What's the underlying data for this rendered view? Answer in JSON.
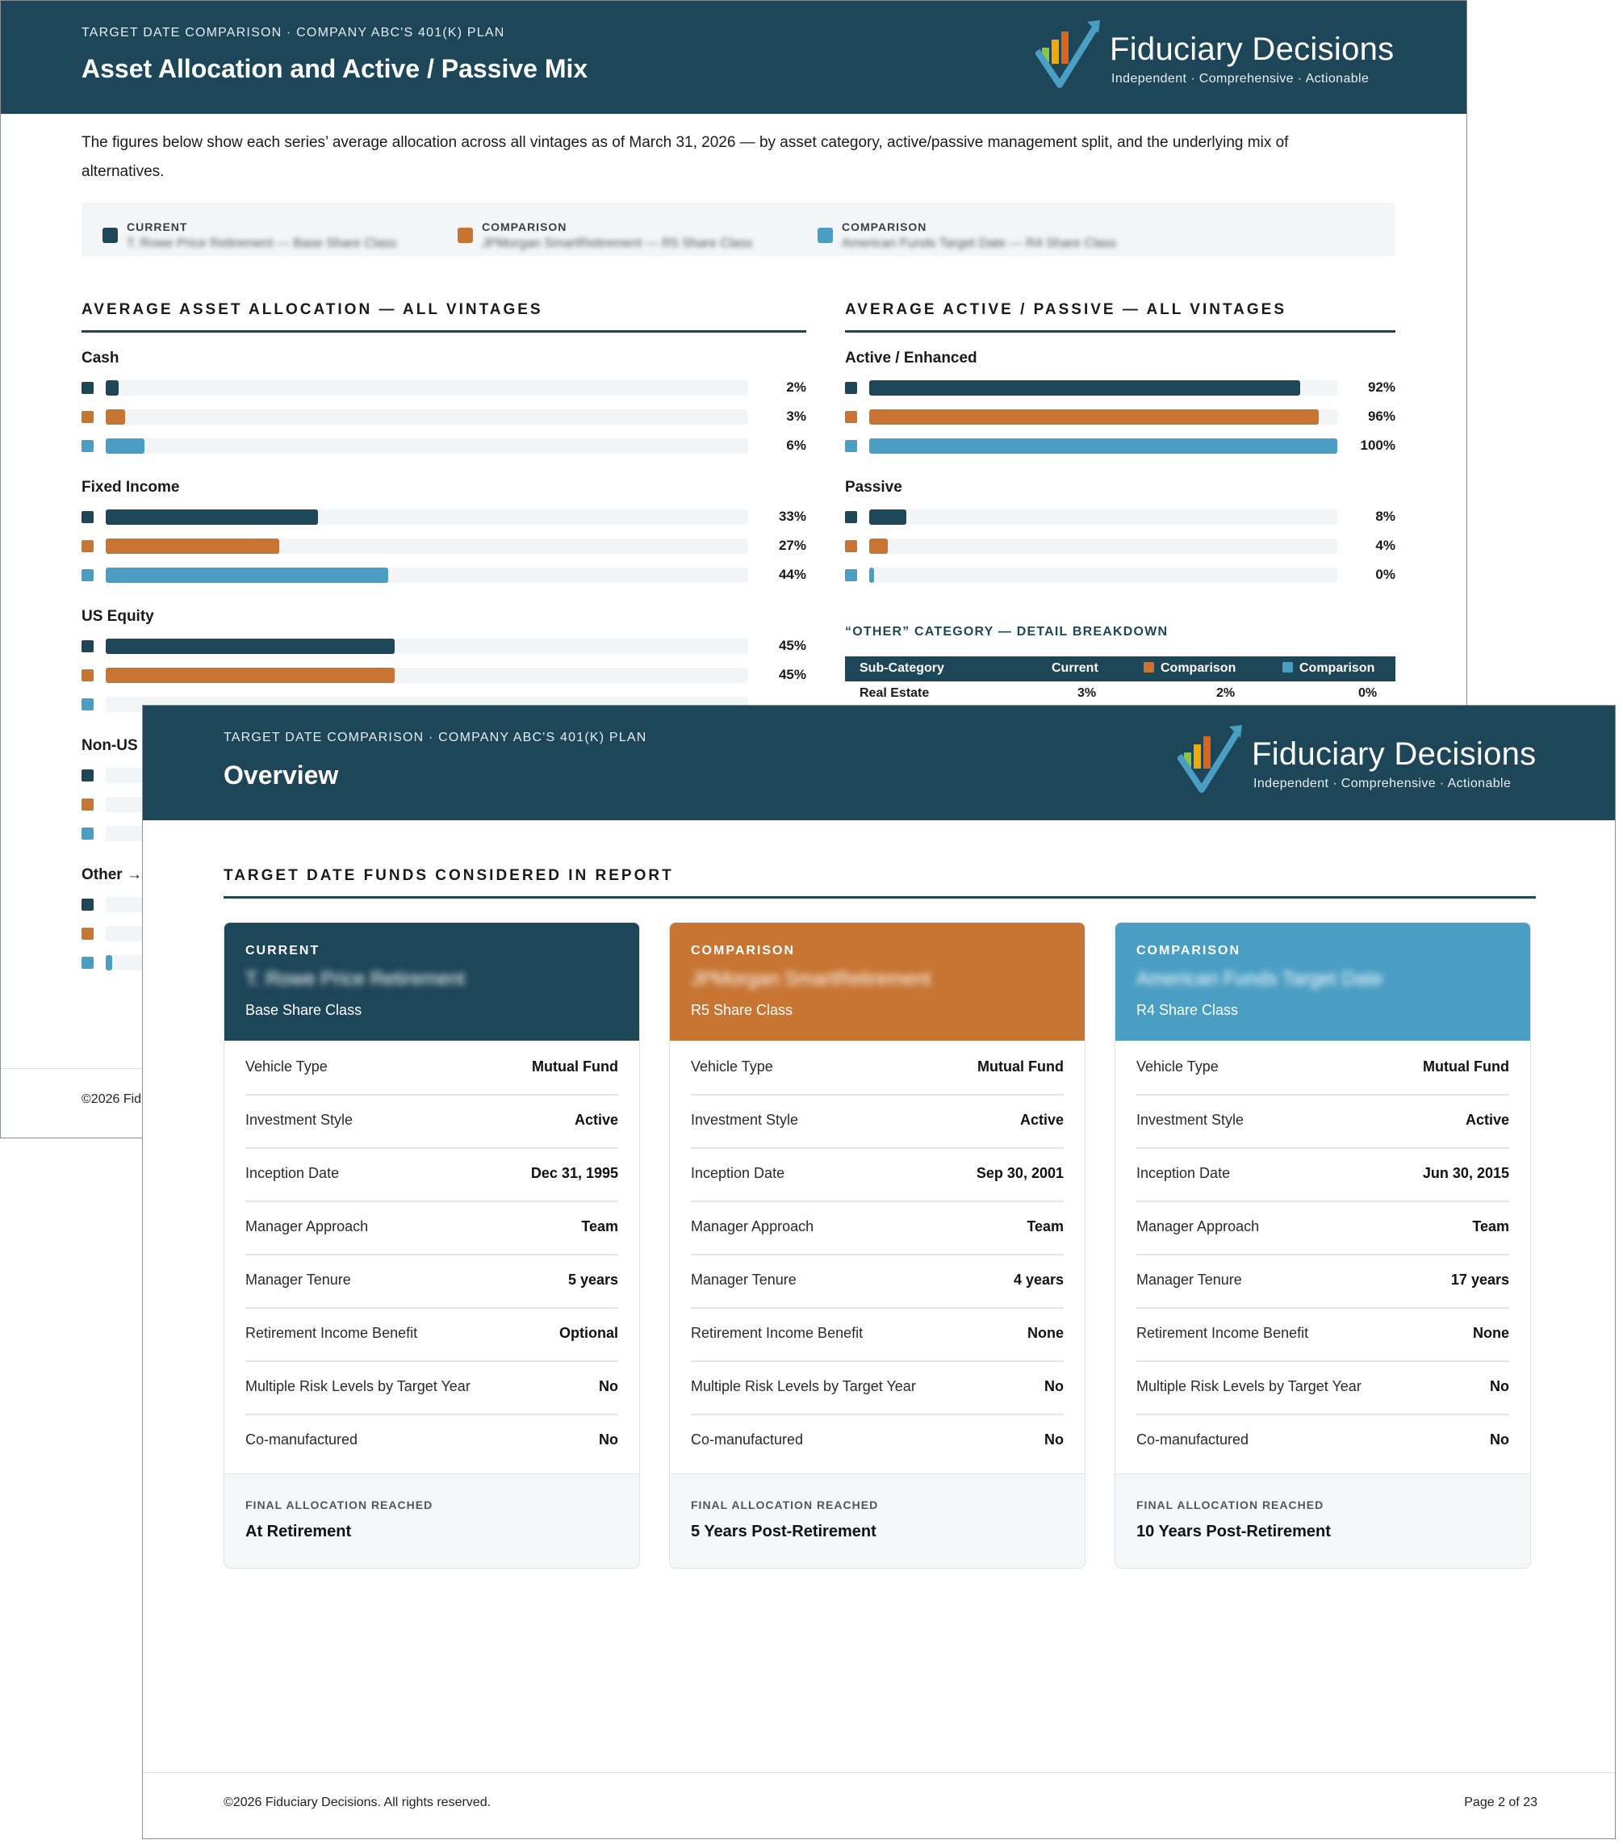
{
  "colors": {
    "current": "#1e4659",
    "comparison1": "#c87533",
    "comparison2": "#4a9ec4",
    "header": "#1e4659"
  },
  "logo": {
    "name": "Fiduciary Decisions",
    "tagline": "Independent · Comprehensive · Actionable"
  },
  "page1": {
    "kicker": "TARGET DATE COMPARISON · COMPANY ABC'S 401(K) PLAN",
    "title": "Asset Allocation and Active / Passive Mix",
    "intro": "The figures below show each series’ average allocation across all vintages as of March 31, 2026 — by asset category, active/passive management split, and the underlying mix of alternatives.",
    "legend": [
      {
        "key": "CURRENT",
        "value": "T. Rowe Price Retirement — Base Share Class"
      },
      {
        "key": "COMPARISON",
        "value": "JPMorgan SmartRetirement — R5 Share Class"
      },
      {
        "key": "COMPARISON",
        "value": "American Funds Target Date — R4 Share Class"
      }
    ],
    "allocation_heading": "AVERAGE ASSET ALLOCATION — ALL VINTAGES",
    "active_heading": "AVERAGE ACTIVE / PASSIVE — ALL VINTAGES",
    "allocation": [
      {
        "label": "Cash",
        "values": [
          2,
          3,
          6
        ],
        "labels": [
          "2%",
          "3%",
          "6%"
        ]
      },
      {
        "label": "Fixed Income",
        "values": [
          33,
          27,
          44
        ],
        "labels": [
          "33%",
          "27%",
          "44%"
        ]
      },
      {
        "label": "US Equity",
        "values": [
          45,
          45,
          null
        ],
        "labels": [
          "45%",
          "45%",
          ""
        ]
      },
      {
        "label": "Non-US E",
        "values": [
          null,
          null,
          null
        ],
        "labels": [
          "",
          "",
          ""
        ]
      },
      {
        "label": "Other →",
        "values": [
          null,
          null,
          1
        ],
        "labels": [
          "",
          "",
          ""
        ]
      }
    ],
    "active": [
      {
        "label": "Active / Enhanced",
        "values": [
          92,
          96,
          100
        ],
        "labels": [
          "92%",
          "96%",
          "100%"
        ]
      },
      {
        "label": "Passive",
        "values": [
          8,
          4,
          0
        ],
        "labels": [
          "8%",
          "4%",
          "0%"
        ]
      }
    ],
    "other_heading": "“OTHER” CATEGORY — DETAIL BREAKDOWN",
    "other_table": {
      "headers": [
        "Sub-Category",
        "Current",
        "Comparison",
        "Comparison"
      ],
      "rows": [
        [
          "Real Estate",
          "3%",
          "2%",
          "0%"
        ]
      ]
    },
    "footer": "©2026 Fid"
  },
  "page2": {
    "kicker": "TARGET DATE COMPARISON · COMPANY ABC'S 401(K) PLAN",
    "title": "Overview",
    "section_heading": "TARGET DATE FUNDS CONSIDERED IN REPORT",
    "cards": [
      {
        "label": "CURRENT",
        "name": "T. Rowe Price Retirement",
        "share_class": "Base Share Class",
        "rows": [
          [
            "Vehicle Type",
            "Mutual Fund"
          ],
          [
            "Investment Style",
            "Active"
          ],
          [
            "Inception Date",
            "Dec 31, 1995"
          ],
          [
            "Manager Approach",
            "Team"
          ],
          [
            "Manager Tenure",
            "5 years"
          ],
          [
            "Retirement Income Benefit",
            "Optional"
          ],
          [
            "Multiple Risk Levels by Target Year",
            "No"
          ],
          [
            "Co-manufactured",
            "No"
          ]
        ],
        "final_key": "FINAL ALLOCATION REACHED",
        "final_value": "At Retirement"
      },
      {
        "label": "COMPARISON",
        "name": "JPMorgan SmartRetirement",
        "share_class": "R5 Share Class",
        "rows": [
          [
            "Vehicle Type",
            "Mutual Fund"
          ],
          [
            "Investment Style",
            "Active"
          ],
          [
            "Inception Date",
            "Sep 30, 2001"
          ],
          [
            "Manager Approach",
            "Team"
          ],
          [
            "Manager Tenure",
            "4 years"
          ],
          [
            "Retirement Income Benefit",
            "None"
          ],
          [
            "Multiple Risk Levels by Target Year",
            "No"
          ],
          [
            "Co-manufactured",
            "No"
          ]
        ],
        "final_key": "FINAL ALLOCATION REACHED",
        "final_value": "5 Years Post-Retirement"
      },
      {
        "label": "COMPARISON",
        "name": "American Funds Target Date",
        "share_class": "R4 Share Class",
        "rows": [
          [
            "Vehicle Type",
            "Mutual Fund"
          ],
          [
            "Investment Style",
            "Active"
          ],
          [
            "Inception Date",
            "Jun 30, 2015"
          ],
          [
            "Manager Approach",
            "Team"
          ],
          [
            "Manager Tenure",
            "17 years"
          ],
          [
            "Retirement Income Benefit",
            "None"
          ],
          [
            "Multiple Risk Levels by Target Year",
            "No"
          ],
          [
            "Co-manufactured",
            "No"
          ]
        ],
        "final_key": "FINAL ALLOCATION REACHED",
        "final_value": "10 Years Post-Retirement"
      }
    ],
    "footer": "©2026 Fiduciary Decisions. All rights reserved.",
    "page_number": "Page 2 of 23"
  }
}
